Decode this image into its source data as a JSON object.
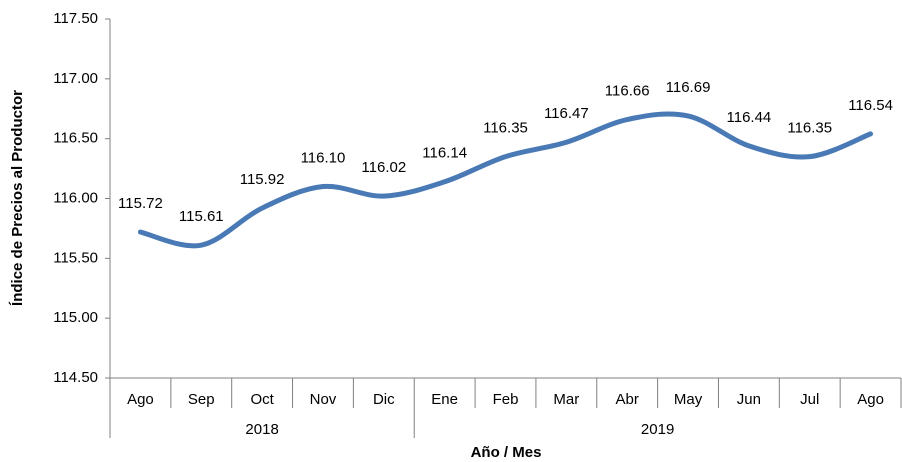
{
  "chart_data": {
    "type": "line",
    "x_axis_label": "Año / Mes",
    "y_axis_label": "Índice de Precios al Productor",
    "categories": [
      "Ago",
      "Sep",
      "Oct",
      "Nov",
      "Dic",
      "Ene",
      "Feb",
      "Mar",
      "Abr",
      "May",
      "Jun",
      "Jul",
      "Ago"
    ],
    "groups": [
      {
        "label": "2018",
        "span": 5
      },
      {
        "label": "2019",
        "span": 8
      }
    ],
    "values": [
      115.72,
      115.61,
      115.92,
      116.1,
      116.02,
      116.14,
      116.35,
      116.47,
      116.66,
      116.69,
      116.44,
      116.35,
      116.54
    ],
    "value_labels": [
      "115.72",
      "115.61",
      "115.92",
      "116.10",
      "116.02",
      "116.14",
      "116.35",
      "116.47",
      "116.66",
      "116.69",
      "116.44",
      "116.35",
      "116.54"
    ],
    "color": "#4a7ab5",
    "smooth": true,
    "ylim": [
      114.5,
      117.5
    ],
    "yticks": [
      {
        "value": 114.5,
        "label": "114.50"
      },
      {
        "value": 115,
        "label": "115.00"
      },
      {
        "value": 115.5,
        "label": "115.50"
      },
      {
        "value": 116,
        "label": "116.00"
      },
      {
        "value": 116.5,
        "label": "116.50"
      },
      {
        "value": 117,
        "label": "117.00"
      },
      {
        "value": 117.5,
        "label": "117.50"
      }
    ]
  }
}
